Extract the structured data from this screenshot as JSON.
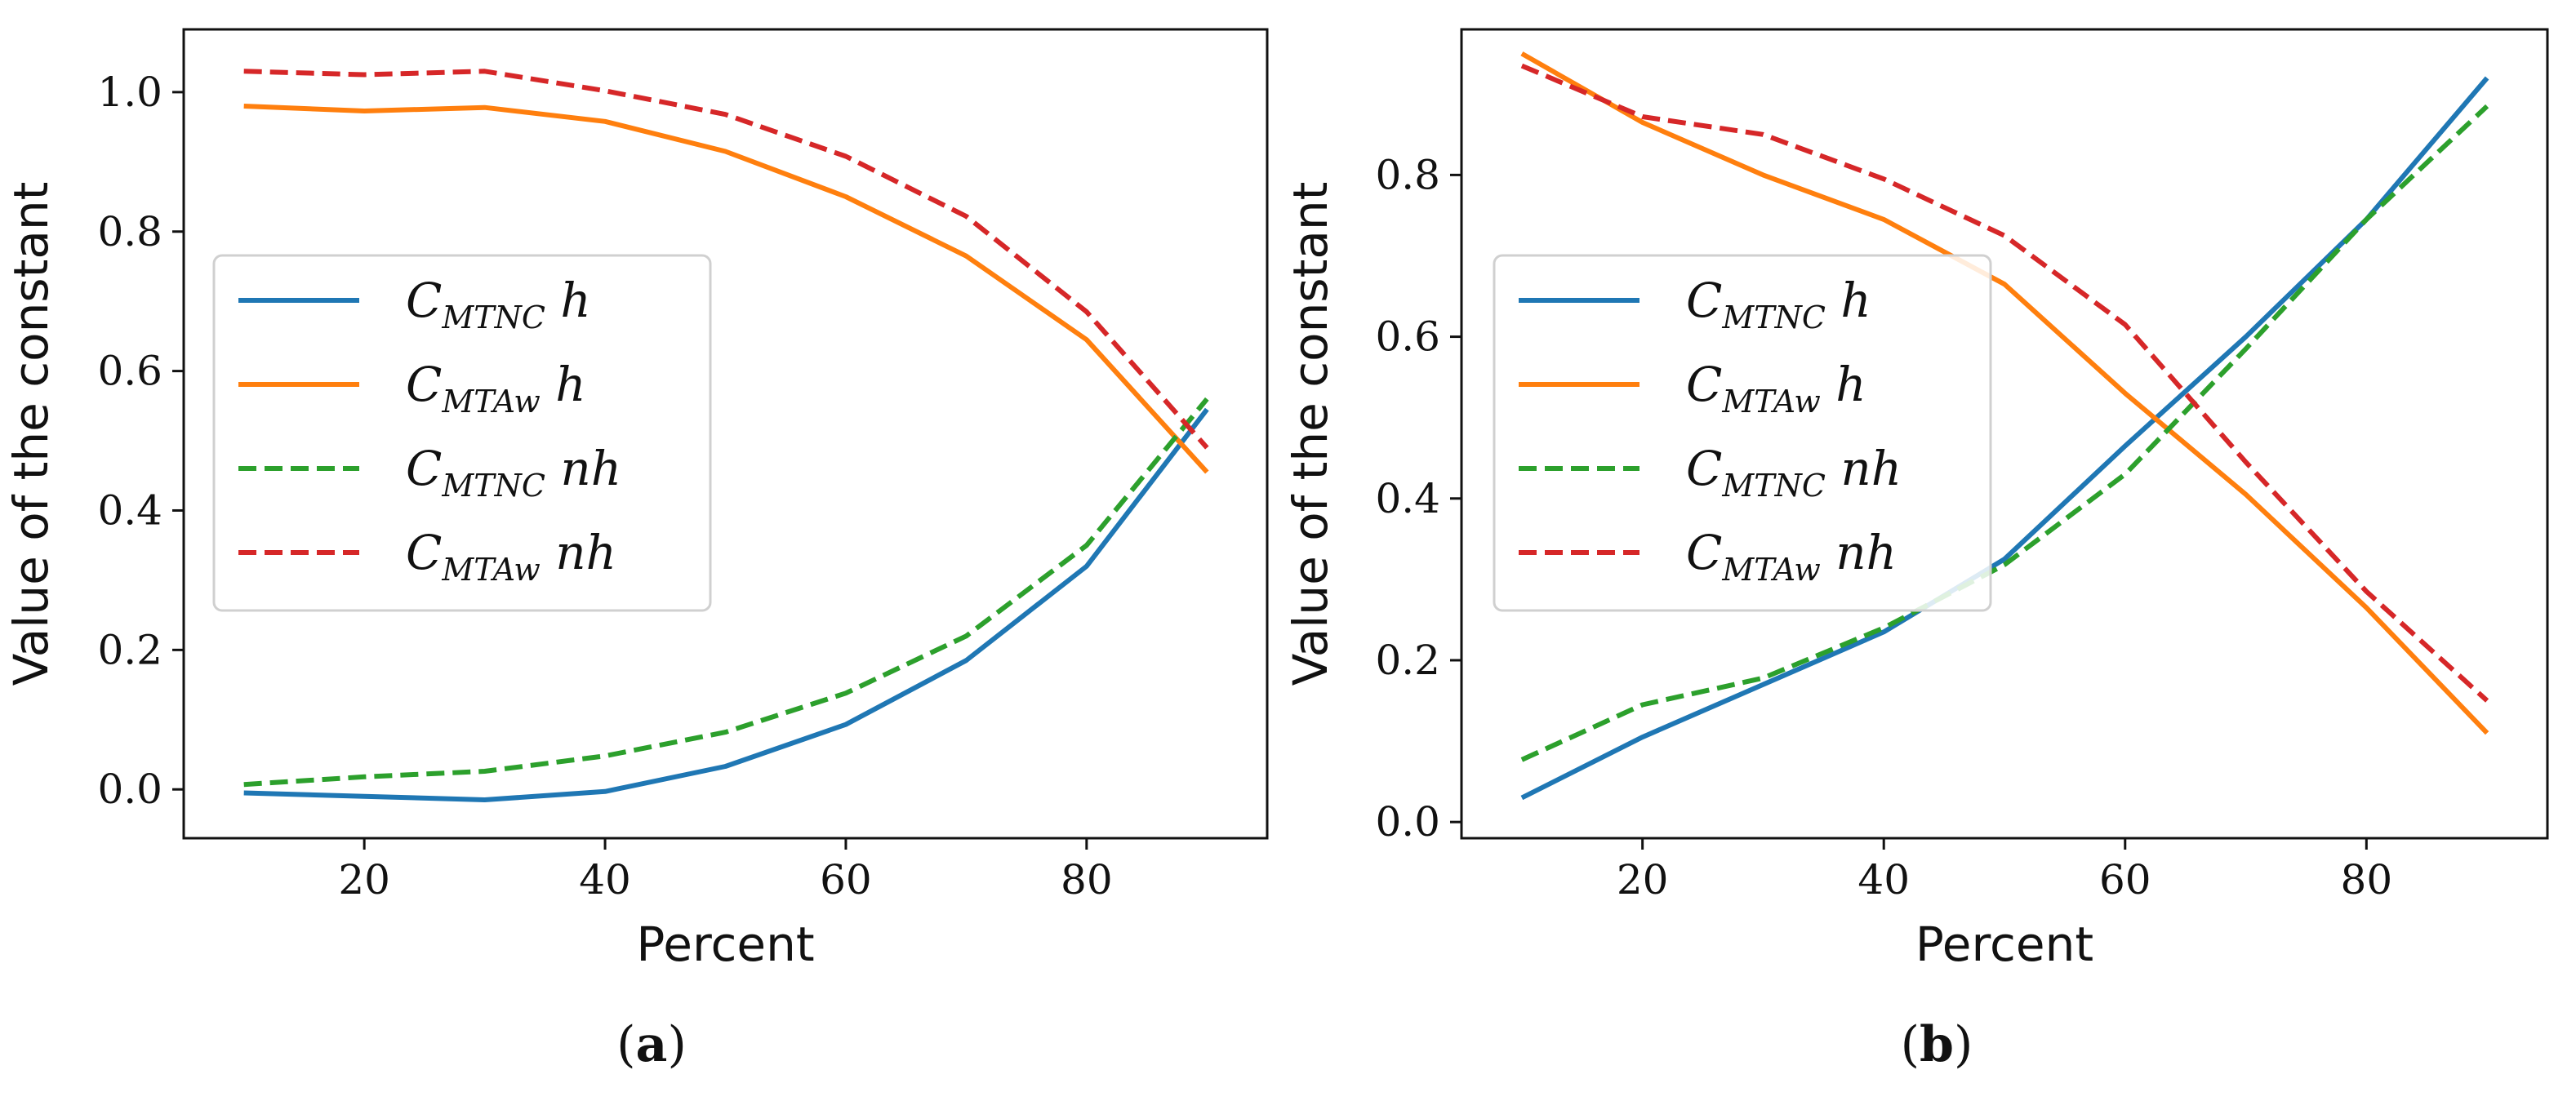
{
  "chart_data": [
    {
      "type": "line",
      "caption_letter": "a",
      "xlabel": "Percent",
      "ylabel": "Value of the constant",
      "xlim": [
        5,
        95
      ],
      "ylim": [
        -0.07,
        1.09
      ],
      "xticks": [
        20,
        40,
        60,
        80
      ],
      "yticks": [
        0.0,
        0.2,
        0.4,
        0.6,
        0.8,
        1.0
      ],
      "x": [
        10,
        20,
        30,
        40,
        50,
        60,
        70,
        80,
        90
      ],
      "legend_position": "center-left",
      "series": [
        {
          "name": "C_MTNC h",
          "label_main": "C",
          "label_sub": "MTNC",
          "label_suffix": " h",
          "color": "#1f77b4",
          "dashed": false,
          "values": [
            -0.005,
            -0.01,
            -0.015,
            -0.003,
            0.033,
            0.093,
            0.185,
            0.32,
            0.545
          ]
        },
        {
          "name": "C_MTAw h",
          "label_main": "C",
          "label_sub": "MTAw",
          "label_suffix": " h",
          "color": "#ff7f0e",
          "dashed": false,
          "values": [
            0.98,
            0.973,
            0.978,
            0.958,
            0.915,
            0.85,
            0.765,
            0.645,
            0.455
          ]
        },
        {
          "name": "C_MTNC nh",
          "label_main": "C",
          "label_sub": "MTNC",
          "label_suffix": " nh",
          "color": "#2ca02c",
          "dashed": true,
          "values": [
            0.007,
            0.018,
            0.026,
            0.048,
            0.082,
            0.138,
            0.22,
            0.35,
            0.56
          ]
        },
        {
          "name": "C_MTAw nh",
          "label_main": "C",
          "label_sub": "MTAw",
          "label_suffix": " nh",
          "color": "#d62728",
          "dashed": true,
          "values": [
            1.03,
            1.025,
            1.03,
            1.002,
            0.968,
            0.908,
            0.822,
            0.685,
            0.49
          ]
        }
      ]
    },
    {
      "type": "line",
      "caption_letter": "b",
      "xlabel": "Percent",
      "ylabel": "Value of the constant",
      "xlim": [
        5,
        95
      ],
      "ylim": [
        -0.02,
        0.98
      ],
      "xticks": [
        20,
        40,
        60,
        80
      ],
      "yticks": [
        0.0,
        0.2,
        0.4,
        0.6,
        0.8
      ],
      "x": [
        10,
        20,
        30,
        40,
        50,
        60,
        70,
        80,
        90
      ],
      "legend_position": "center-left",
      "series": [
        {
          "name": "C_MTNC h",
          "label_main": "C",
          "label_sub": "MTNC",
          "label_suffix": " h",
          "color": "#1f77b4",
          "dashed": false,
          "values": [
            0.03,
            0.105,
            0.17,
            0.235,
            0.325,
            0.465,
            0.6,
            0.745,
            0.92
          ]
        },
        {
          "name": "C_MTAw h",
          "label_main": "C",
          "label_sub": "MTAw",
          "label_suffix": " h",
          "color": "#ff7f0e",
          "dashed": false,
          "values": [
            0.95,
            0.865,
            0.8,
            0.745,
            0.665,
            0.53,
            0.405,
            0.265,
            0.11
          ]
        },
        {
          "name": "C_MTNC nh",
          "label_main": "C",
          "label_sub": "MTNC",
          "label_suffix": " nh",
          "color": "#2ca02c",
          "dashed": true,
          "values": [
            0.077,
            0.145,
            0.178,
            0.24,
            0.318,
            0.43,
            0.585,
            0.745,
            0.885
          ]
        },
        {
          "name": "C_MTAw nh",
          "label_main": "C",
          "label_sub": "MTAw",
          "label_suffix": " nh",
          "color": "#d62728",
          "dashed": true,
          "values": [
            0.935,
            0.872,
            0.85,
            0.795,
            0.725,
            0.615,
            0.445,
            0.285,
            0.15
          ]
        }
      ]
    }
  ]
}
